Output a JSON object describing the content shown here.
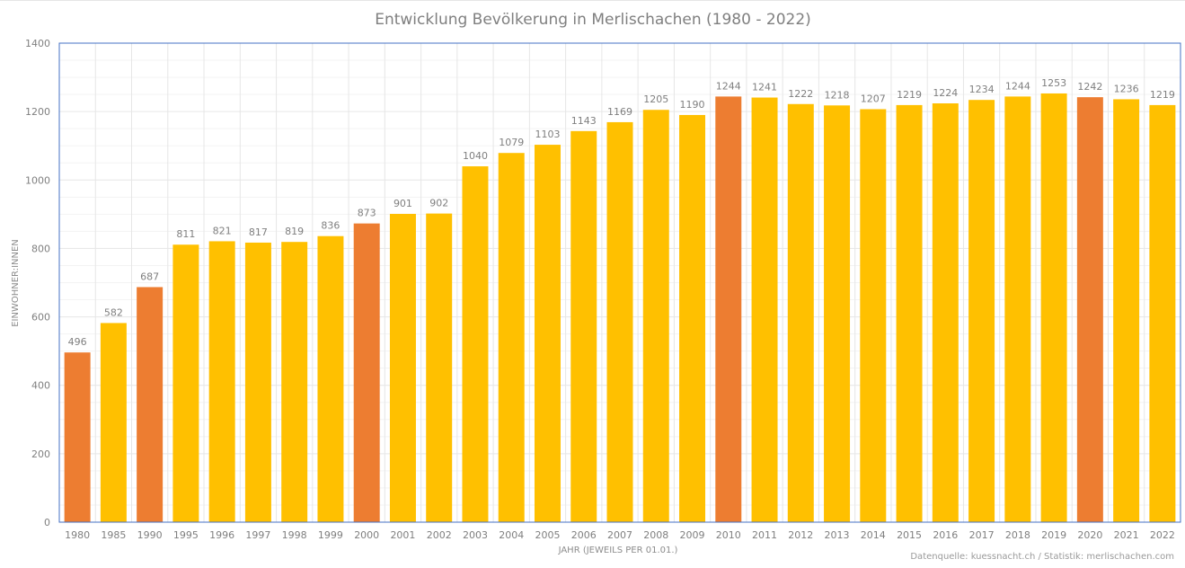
{
  "chart_data": {
    "type": "bar",
    "title": "Entwicklung Bevölkerung in Merlischachen (1980 - 2022)",
    "xlabel": "JAHR (JEWEILS PER 01.01.)",
    "ylabel": "EINWOHNER:INNEN",
    "ylim": [
      0,
      1400
    ],
    "yticks": [
      "0",
      "200",
      "400",
      "600",
      "800",
      "1000",
      "1200",
      "1400"
    ],
    "grid": true,
    "categories": [
      "1980",
      "1985",
      "1990",
      "1995",
      "1996",
      "1997",
      "1998",
      "1999",
      "2000",
      "2001",
      "2002",
      "2003",
      "2004",
      "2005",
      "2006",
      "2007",
      "2008",
      "2009",
      "2010",
      "2011",
      "2012",
      "2013",
      "2014",
      "2015",
      "2016",
      "2017",
      "2018",
      "2019",
      "2020",
      "2021",
      "2022"
    ],
    "values": [
      496,
      582,
      687,
      811,
      821,
      817,
      819,
      836,
      873,
      901,
      902,
      1040,
      1079,
      1103,
      1143,
      1169,
      1205,
      1190,
      1244,
      1241,
      1222,
      1218,
      1207,
      1219,
      1224,
      1234,
      1244,
      1253,
      1242,
      1236,
      1219
    ],
    "highlighted": [
      "1980",
      "1990",
      "2000",
      "2010",
      "2020"
    ],
    "colors": {
      "bar": "#ffc000",
      "highlight": "#ed7d31",
      "axis_frame": "#4472c4",
      "grid": "#e6e6e6",
      "minor_grid": "#f3f3f3"
    },
    "source": "Datenquelle: kuessnacht.ch / Statistik: merlischachen.com"
  }
}
